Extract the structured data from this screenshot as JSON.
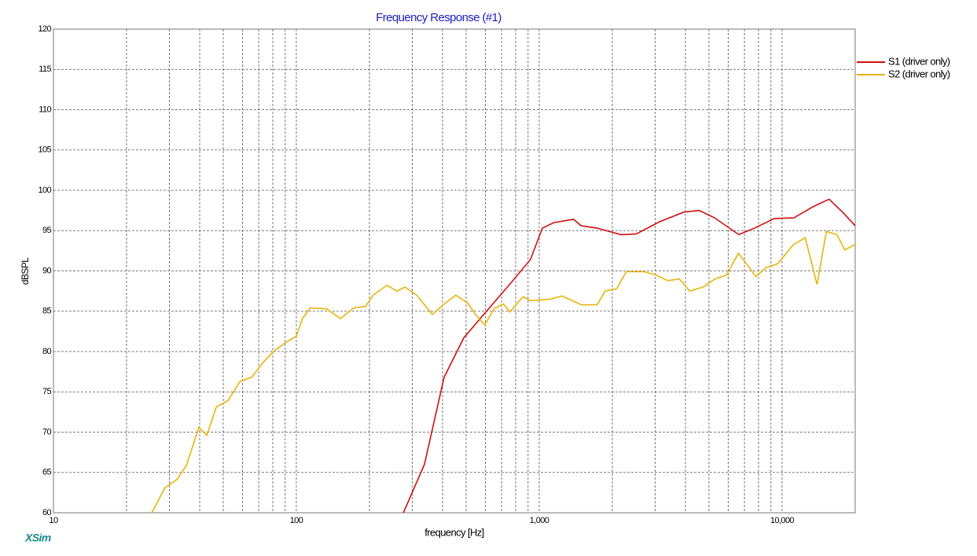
{
  "chart_data": {
    "type": "line",
    "title": "Frequency Response (#1)",
    "xlabel": "frequency [Hz]",
    "ylabel": "dBSPL",
    "logo": "XSim",
    "xscale": "log",
    "xlim": [
      10,
      20000
    ],
    "ylim": [
      60,
      120
    ],
    "xticks": [
      10,
      100,
      {
        "value": 1000,
        "label": "1,000"
      },
      {
        "value": 10000,
        "label": "10,000"
      }
    ],
    "xminorticks": [
      20,
      30,
      40,
      50,
      60,
      70,
      80,
      90,
      200,
      300,
      400,
      500,
      600,
      700,
      800,
      900,
      2000,
      3000,
      4000,
      5000,
      6000,
      7000,
      8000,
      9000
    ],
    "yticks": [
      60,
      65,
      70,
      75,
      80,
      85,
      90,
      95,
      100,
      105,
      110,
      115,
      120
    ],
    "grid": true,
    "legend": "right",
    "series": [
      {
        "name": "S1 (driver only)",
        "color": "#d01010",
        "x": [
          276,
          337,
          406,
          489,
          611,
          764,
          920,
          1030,
          1150,
          1385,
          1490,
          1740,
          2170,
          2510,
          3130,
          3940,
          4560,
          5270,
          6640,
          7680,
          9290,
          11190,
          13470,
          15630,
          18000,
          20000
        ],
        "values": [
          60,
          66.0,
          76.8,
          81.7,
          85.1,
          88.5,
          91.4,
          95.3,
          96.0,
          96.4,
          95.6,
          95.3,
          94.5,
          94.6,
          96.1,
          97.3,
          97.5,
          96.6,
          94.5,
          95.3,
          96.5,
          96.6,
          98.0,
          98.9,
          97.1,
          95.6
        ]
      },
      {
        "name": "S2 (driver only)",
        "color": "#e8b40c",
        "x": [
          25.4,
          28.8,
          32.2,
          35.3,
          39.7,
          42.8,
          46.8,
          52.3,
          58.6,
          65.5,
          73.3,
          80.5,
          91.3,
          100,
          106,
          114,
          133,
          152,
          172,
          193,
          207,
          236,
          260,
          280,
          313,
          363,
          406,
          454,
          508,
          547,
          598,
          650,
          713,
          757,
          858,
          920,
          1109,
          1241,
          1491,
          1733,
          1867,
          2086,
          2282,
          2705,
          3025,
          3383,
          3783,
          4170,
          4733,
          5283,
          5912,
          6615,
          7130,
          7800,
          8580,
          9605,
          11150,
          12460,
          13930,
          15230,
          16820,
          18120,
          20000
        ],
        "values": [
          60,
          63.1,
          64.1,
          65.9,
          70.6,
          69.6,
          73.1,
          73.9,
          76.3,
          76.8,
          78.7,
          80.0,
          81.2,
          81.9,
          84.1,
          85.4,
          85.3,
          84.1,
          85.4,
          85.6,
          87.0,
          88.2,
          87.5,
          88.0,
          87.0,
          84.6,
          85.9,
          87.0,
          86.0,
          84.6,
          83.3,
          85.3,
          85.9,
          84.9,
          86.8,
          86.3,
          86.5,
          86.9,
          85.8,
          85.8,
          87.5,
          87.8,
          89.9,
          89.9,
          89.5,
          88.8,
          89.0,
          87.5,
          88.0,
          89.0,
          89.5,
          92.2,
          90.9,
          89.3,
          90.4,
          90.9,
          93.3,
          94.1,
          88.3,
          94.9,
          94.5,
          92.6,
          93.3
        ]
      }
    ]
  }
}
